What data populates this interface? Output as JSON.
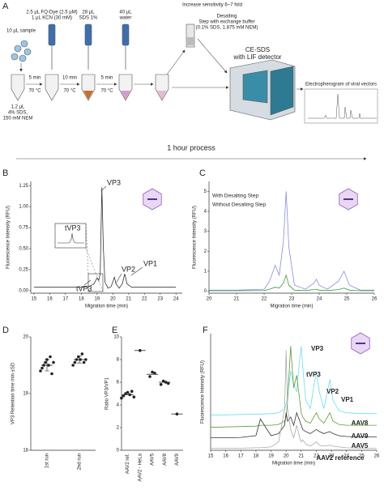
{
  "schematic": {
    "panel": "A",
    "sample": "10 µL sample",
    "dye": [
      "2.5 µL FQ-Dye (2.5 µM)",
      "1 µL KCN (30 mM)"
    ],
    "sds": [
      "28 µL",
      "SDS 1%"
    ],
    "water": [
      "40 µL",
      "water"
    ],
    "reagent": [
      "1.2 µL",
      "4% SDS,",
      "150 mM NEM"
    ],
    "incubations": [
      [
        "5 min",
        "70 °C"
      ],
      [
        "10 min",
        "70 °C"
      ],
      [
        "5 min",
        "70 °C"
      ]
    ],
    "sensitivity": "Increase sensitivity 6~7 fold",
    "desalting": [
      "Desalting",
      "Step with exchange buffer",
      "(0.1% SDS, 1.875 mM NEM)"
    ],
    "instrument": [
      "CE-SDS",
      "with LIF detector"
    ],
    "output": "Electropherogram of viral vectors",
    "duration": "1 hour process"
  },
  "chart_data": [
    {
      "panel": "B",
      "type": "line",
      "xlabel": "Migration time (min)",
      "ylabel": "Fluorescence Intensity (RFU)",
      "x": [
        15,
        16,
        17,
        18,
        18.5,
        18.8,
        19.0,
        19.1,
        19.2,
        19.3,
        19.4,
        19.5,
        19.7,
        19.9,
        20.1,
        20.2,
        20.4,
        20.6,
        20.75,
        20.9,
        21.2,
        22,
        23,
        24
      ],
      "series": [
        {
          "color": "#333333",
          "values": [
            0.04,
            0.04,
            0.04,
            0.04,
            0.05,
            0.08,
            0.15,
            0.12,
            0.2,
            1.23,
            0.5,
            0.1,
            0.03,
            0.05,
            0.16,
            0.08,
            0.03,
            0.08,
            0.2,
            0.08,
            0.04,
            0.04,
            0.04,
            0.04
          ]
        }
      ],
      "xlim": [
        14.8,
        24.4
      ],
      "xticks": [
        15,
        16,
        17,
        18,
        19,
        20,
        21,
        22,
        23,
        24
      ],
      "ylim": [
        -0.03,
        1.3
      ],
      "yticks": [
        {
          "value": 0,
          "label": "0.00"
        },
        {
          "value": 0.25,
          "label": "0.25"
        },
        {
          "value": 0.5,
          "label": "0.50"
        },
        {
          "value": 0.75,
          "label": "0.75"
        },
        {
          "value": 1,
          "label": "1.00"
        },
        {
          "value": 1.25,
          "label": "1.25"
        }
      ],
      "annotations": [
        "VP3",
        "VP2",
        "VP1",
        "tVP3",
        "tVP3"
      ]
    },
    {
      "panel": "C",
      "type": "line",
      "xlabel": "Migration time (min)",
      "ylabel": "Fluorescence Intensity (RFU)",
      "x": [
        20,
        21,
        22,
        22.2,
        22.4,
        22.55,
        22.7,
        22.8,
        22.9,
        23.1,
        23.5,
        23.8,
        23.9,
        24.0,
        24.3,
        24.7,
        24.9,
        25.1,
        25.5,
        26
      ],
      "series": [
        {
          "name": "With Desalting Step",
          "color": "#8a8ae6",
          "values": [
            0.05,
            0.05,
            0.1,
            0.5,
            1.3,
            0.8,
            2.5,
            5.0,
            2.2,
            0.3,
            0.1,
            0.4,
            0.6,
            0.3,
            0.1,
            0.5,
            1.0,
            0.3,
            0.05,
            0.05
          ]
        },
        {
          "name": "Without Desalting Step",
          "color": "#3a9a3a",
          "values": [
            0.02,
            0.02,
            0.03,
            0.1,
            0.2,
            0.15,
            0.4,
            0.8,
            0.3,
            0.05,
            0.03,
            0.08,
            0.1,
            0.05,
            0.03,
            0.08,
            0.15,
            0.05,
            0.02,
            0.02
          ]
        }
      ],
      "xlim": [
        20,
        26
      ],
      "xticks": [
        20,
        21,
        22,
        23,
        24,
        25,
        26
      ],
      "ylim": [
        -0.1,
        5.5
      ],
      "yticks": [
        0,
        1,
        2,
        3,
        4,
        5
      ]
    },
    {
      "panel": "D",
      "type": "dot",
      "ylabel": "VP3 Retention time min ±SD",
      "categories": [
        "1st run",
        "2nd run"
      ],
      "points": [
        [
          19.4,
          19.45,
          19.5,
          19.55,
          19.6,
          19.5,
          19.65,
          19.35,
          19.55
        ],
        [
          19.5,
          19.55,
          19.6,
          19.65,
          19.6,
          19.7,
          19.55,
          19.6
        ]
      ],
      "means": [
        19.5,
        19.6
      ],
      "sd": [
        0.1,
        0.06
      ],
      "color": "#222222",
      "ylim": [
        18,
        20
      ],
      "yticks": [
        18,
        19,
        20
      ]
    },
    {
      "panel": "E",
      "type": "dot",
      "ylabel": "Ratio VP3/VP1",
      "categories": [
        "AAV2 ref.",
        "AAV2 - HeLa",
        "AAV5",
        "AAV8",
        "AAV9"
      ],
      "points": [
        [
          4.6,
          4.8,
          5.0,
          5.1,
          4.9,
          5.2,
          4.7
        ],
        [
          8.8
        ],
        [
          6.5,
          6.9,
          6.8
        ],
        [
          5.8,
          6.1,
          6.0,
          5.9
        ],
        [
          3.2
        ]
      ],
      "means": [
        4.9,
        8.8,
        6.7,
        6.0,
        3.2
      ],
      "color": "#222222",
      "ylim": [
        0,
        10
      ],
      "yticks": [
        0,
        2,
        4,
        6,
        8,
        10
      ]
    },
    {
      "panel": "F",
      "type": "line",
      "xlabel": "Migration time (min)",
      "ylabel": "Fluorescence Intensity (RFU)",
      "x": [
        15,
        16,
        17,
        18,
        18.3,
        19,
        19.5,
        19.9,
        20.0,
        20.1,
        20.3,
        20.5,
        20.7,
        20.9,
        21.0,
        21.1,
        21.3,
        21.6,
        22.0,
        22.2,
        22.5,
        22.9,
        23.1,
        23.5,
        24,
        25,
        26
      ],
      "series": [
        {
          "name": "AAV8",
          "color": "#66dff0",
          "values": [
            0.85,
            0.85,
            0.86,
            0.87,
            0.87,
            0.88,
            0.9,
            1.0,
            1.1,
            1.3,
            1.9,
            1.6,
            1.4,
            2.2,
            2.5,
            2.0,
            1.2,
            1.0,
            1.9,
            1.4,
            1.0,
            1.7,
            1.2,
            0.95,
            0.9,
            0.88,
            0.88
          ]
        },
        {
          "name": "AAV9",
          "color": "#5aa02c",
          "values": [
            0.55,
            0.56,
            0.57,
            0.58,
            0.6,
            0.6,
            0.62,
            0.7,
            0.8,
            1.2,
            2.5,
            1.5,
            1.8,
            1.2,
            0.9,
            0.8,
            0.7,
            0.65,
            0.9,
            0.75,
            0.65,
            0.9,
            0.7,
            0.62,
            0.6,
            0.6,
            0.6
          ]
        },
        {
          "name": "AAV5",
          "color": "#333333",
          "values": [
            0.3,
            0.3,
            0.31,
            0.35,
            0.75,
            0.35,
            0.4,
            0.6,
            0.9,
            0.7,
            0.8,
            0.6,
            0.9,
            0.7,
            0.6,
            0.5,
            0.45,
            0.4,
            0.5,
            0.45,
            0.4,
            0.45,
            0.4,
            0.35,
            0.33,
            0.32,
            0.32
          ]
        },
        {
          "name": "AAV2 reference",
          "color": "#aaaaaa",
          "values": [
            0.05,
            0.05,
            0.05,
            0.06,
            0.06,
            0.08,
            0.2,
            1.0,
            2.4,
            1.0,
            0.5,
            0.3,
            0.6,
            0.3,
            0.2,
            0.25,
            0.15,
            0.1,
            0.2,
            0.12,
            0.1,
            0.12,
            0.1,
            0.08,
            0.06,
            0.05,
            0.05
          ]
        }
      ],
      "xlim": [
        15,
        26
      ],
      "xticks": [
        15,
        16,
        17,
        18,
        19,
        20,
        21,
        22,
        23,
        24,
        25,
        26
      ],
      "ylim": [
        0,
        2.8
      ],
      "annotations": [
        "VP3",
        "tVP3",
        "VP2",
        "VP1"
      ]
    }
  ]
}
